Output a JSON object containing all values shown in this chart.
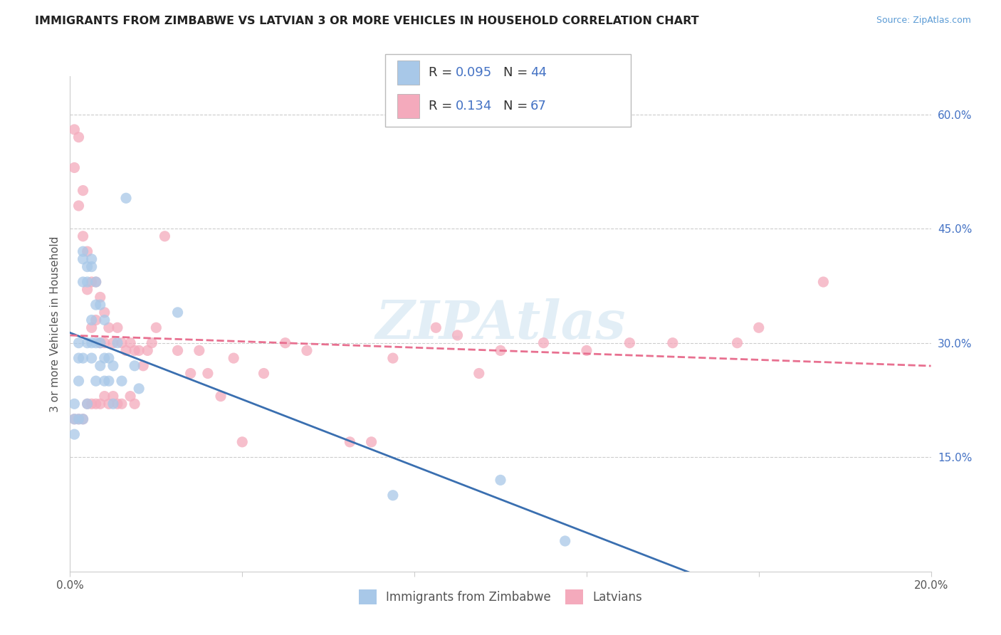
{
  "title": "IMMIGRANTS FROM ZIMBABWE VS LATVIAN 3 OR MORE VEHICLES IN HOUSEHOLD CORRELATION CHART",
  "source": "Source: ZipAtlas.com",
  "ylabel": "3 or more Vehicles in Household",
  "x_min": 0.0,
  "x_max": 0.2,
  "y_min": 0.0,
  "y_max": 0.65,
  "x_ticks": [
    0.0,
    0.04,
    0.08,
    0.12,
    0.16,
    0.2
  ],
  "x_tick_labels": [
    "0.0%",
    "",
    "",
    "",
    "",
    "20.0%"
  ],
  "y_ticks": [
    0.15,
    0.3,
    0.45,
    0.6
  ],
  "y_tick_labels": [
    "15.0%",
    "30.0%",
    "45.0%",
    "60.0%"
  ],
  "blue_R": 0.095,
  "blue_N": 44,
  "pink_R": 0.134,
  "pink_N": 67,
  "blue_color": "#a8c8e8",
  "pink_color": "#f4aabc",
  "blue_line_color": "#3a6fb0",
  "pink_line_color": "#e87090",
  "watermark": "ZIPAtlas",
  "legend_label_blue": "Immigrants from Zimbabwe",
  "legend_label_pink": "Latvians",
  "blue_scatter_x": [
    0.001,
    0.001,
    0.001,
    0.002,
    0.002,
    0.002,
    0.002,
    0.003,
    0.003,
    0.003,
    0.003,
    0.003,
    0.004,
    0.004,
    0.004,
    0.004,
    0.005,
    0.005,
    0.005,
    0.005,
    0.005,
    0.006,
    0.006,
    0.006,
    0.006,
    0.007,
    0.007,
    0.007,
    0.008,
    0.008,
    0.008,
    0.009,
    0.009,
    0.01,
    0.01,
    0.011,
    0.012,
    0.013,
    0.015,
    0.016,
    0.025,
    0.075,
    0.1,
    0.115
  ],
  "blue_scatter_y": [
    0.22,
    0.2,
    0.18,
    0.3,
    0.28,
    0.25,
    0.2,
    0.42,
    0.41,
    0.38,
    0.28,
    0.2,
    0.4,
    0.38,
    0.3,
    0.22,
    0.41,
    0.4,
    0.33,
    0.3,
    0.28,
    0.38,
    0.35,
    0.3,
    0.25,
    0.35,
    0.3,
    0.27,
    0.33,
    0.28,
    0.25,
    0.28,
    0.25,
    0.27,
    0.22,
    0.3,
    0.25,
    0.49,
    0.27,
    0.24,
    0.34,
    0.1,
    0.12,
    0.04
  ],
  "pink_scatter_x": [
    0.001,
    0.001,
    0.001,
    0.002,
    0.002,
    0.002,
    0.003,
    0.003,
    0.003,
    0.004,
    0.004,
    0.004,
    0.005,
    0.005,
    0.005,
    0.006,
    0.006,
    0.006,
    0.007,
    0.007,
    0.007,
    0.008,
    0.008,
    0.008,
    0.009,
    0.009,
    0.01,
    0.01,
    0.011,
    0.011,
    0.012,
    0.012,
    0.013,
    0.014,
    0.014,
    0.015,
    0.015,
    0.016,
    0.017,
    0.018,
    0.019,
    0.02,
    0.022,
    0.025,
    0.028,
    0.03,
    0.032,
    0.035,
    0.038,
    0.04,
    0.045,
    0.05,
    0.055,
    0.065,
    0.07,
    0.075,
    0.085,
    0.09,
    0.095,
    0.1,
    0.11,
    0.12,
    0.13,
    0.14,
    0.155,
    0.16,
    0.175
  ],
  "pink_scatter_y": [
    0.58,
    0.53,
    0.2,
    0.57,
    0.48,
    0.2,
    0.5,
    0.44,
    0.2,
    0.42,
    0.37,
    0.22,
    0.38,
    0.32,
    0.22,
    0.38,
    0.33,
    0.22,
    0.36,
    0.3,
    0.22,
    0.34,
    0.3,
    0.23,
    0.32,
    0.22,
    0.3,
    0.23,
    0.32,
    0.22,
    0.3,
    0.22,
    0.29,
    0.3,
    0.23,
    0.29,
    0.22,
    0.29,
    0.27,
    0.29,
    0.3,
    0.32,
    0.44,
    0.29,
    0.26,
    0.29,
    0.26,
    0.23,
    0.28,
    0.17,
    0.26,
    0.3,
    0.29,
    0.17,
    0.17,
    0.28,
    0.32,
    0.31,
    0.26,
    0.29,
    0.3,
    0.29,
    0.3,
    0.3,
    0.3,
    0.32,
    0.38
  ]
}
